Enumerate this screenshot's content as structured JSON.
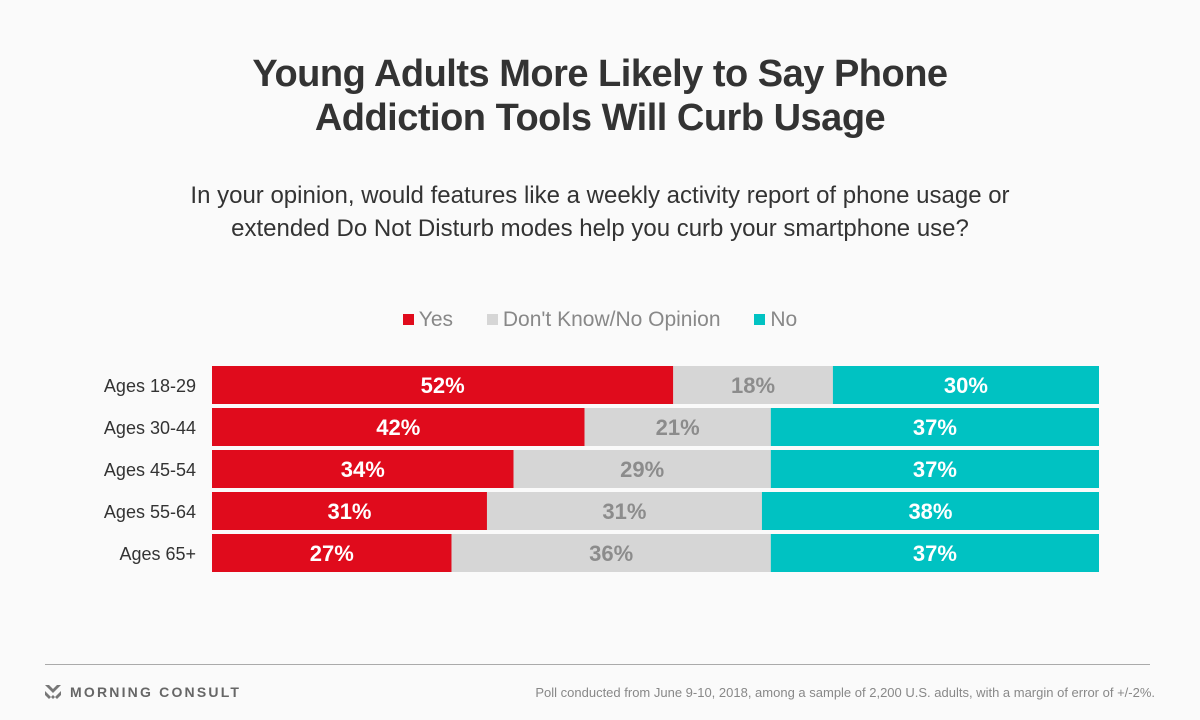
{
  "chart_data": {
    "type": "bar",
    "orientation": "horizontal",
    "stacked": true,
    "normalized": "100%",
    "title": "Young Adults More Likely to Say Phone Addiction Tools Will Curb Usage",
    "subtitle": "In your opinion, would features like a weekly activity report of phone usage or extended Do Not Disturb modes help you curb your smartphone use?",
    "xlabel": "",
    "ylabel": "",
    "xlim": [
      0,
      100
    ],
    "grid": false,
    "legend_position": "top-center",
    "categories": [
      "Ages 18-29",
      "Ages 30-44",
      "Ages 45-54",
      "Ages 55-64",
      "Ages 65+"
    ],
    "series": [
      {
        "name": "Yes",
        "color": "#E00B1C",
        "label_color": "#FFFFFF",
        "values": [
          52,
          42,
          34,
          31,
          27
        ]
      },
      {
        "name": "Don't Know/No Opinion",
        "color": "#D6D6D6",
        "label_color": "#8C8C8C",
        "values": [
          18,
          21,
          29,
          31,
          36
        ]
      },
      {
        "name": "No",
        "color": "#00C2C2",
        "label_color": "#FFFFFF",
        "values": [
          30,
          37,
          37,
          38,
          37
        ]
      }
    ],
    "value_suffix": "%"
  },
  "title_lines": [
    "Young Adults More Likely to Say Phone",
    "Addiction Tools Will Curb Usage"
  ],
  "subtitle_lines": [
    "In your opinion, would features like a weekly activity report of phone usage or",
    "extended Do Not Disturb modes help you curb your smartphone use?"
  ],
  "legend": [
    {
      "label": "Yes",
      "color": "#E00B1C"
    },
    {
      "label": "Don't Know/No Opinion",
      "color": "#D6D6D6"
    },
    {
      "label": "No",
      "color": "#00C2C2"
    }
  ],
  "footer": {
    "brand": "MORNING CONSULT",
    "brand_icon": "morning-consult-logo-icon",
    "source": "Poll conducted from June 9-10, 2018, among a sample of 2,200 U.S. adults, with a margin of error of +/-2%."
  }
}
